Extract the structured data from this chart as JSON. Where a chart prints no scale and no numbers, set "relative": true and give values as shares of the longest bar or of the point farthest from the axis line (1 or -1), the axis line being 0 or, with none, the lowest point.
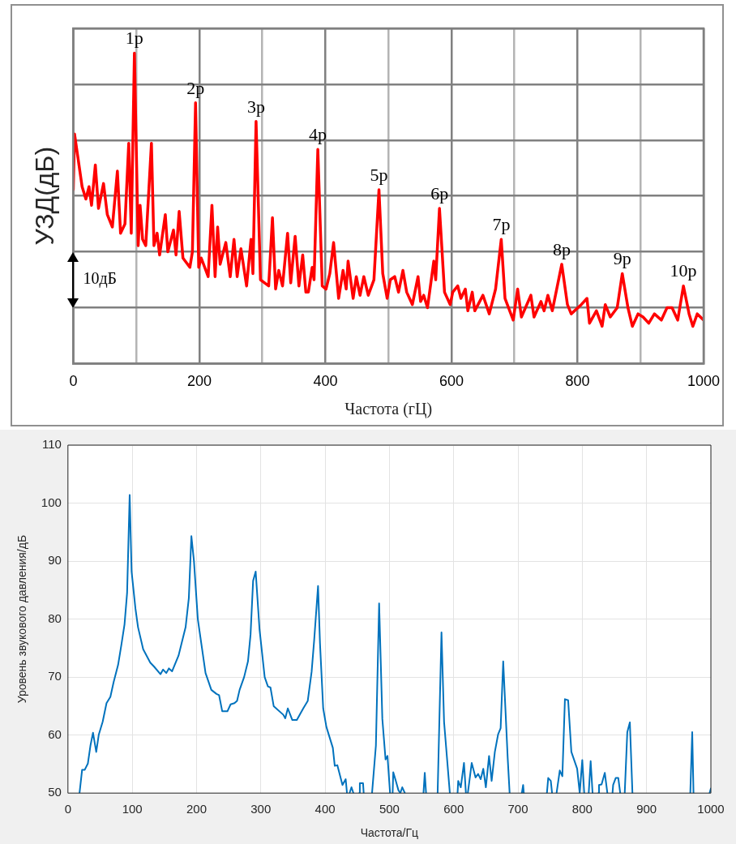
{
  "chart_data": [
    {
      "type": "line",
      "xlabel": "Частота (гЦ)",
      "ylabel": "УЗД(дБ)",
      "relative": true,
      "grid": true,
      "tick_labels": "x",
      "xlim": [
        0,
        1000
      ],
      "xticks": [
        0,
        {
          "value": 100,
          "label": null
        },
        200,
        {
          "value": 300,
          "label": null
        },
        400,
        {
          "value": 500,
          "label": null
        },
        600,
        {
          "value": 700,
          "label": null
        },
        800,
        {
          "value": 900,
          "label": null
        },
        1000
      ],
      "x": [
        0,
        2,
        14,
        20,
        25,
        29,
        35,
        40,
        48,
        54,
        62,
        70,
        75,
        82,
        88,
        92,
        97,
        103,
        106,
        110,
        115,
        124,
        128,
        133,
        137,
        146,
        150,
        159,
        163,
        168,
        174,
        185,
        189,
        194,
        199,
        203,
        214,
        220,
        225,
        229,
        233,
        242,
        249,
        255,
        260,
        266,
        275,
        282,
        285,
        290,
        297,
        310,
        316,
        321,
        326,
        332,
        340,
        345,
        352,
        358,
        364,
        369,
        373,
        379,
        382,
        388,
        395,
        401,
        407,
        413,
        421,
        428,
        433,
        436,
        444,
        449,
        455,
        461,
        468,
        477,
        485,
        491,
        498,
        503,
        510,
        516,
        523,
        529,
        538,
        547,
        551,
        556,
        562,
        572,
        575,
        581,
        589,
        598,
        602,
        610,
        615,
        622,
        626,
        633,
        637,
        650,
        660,
        670,
        679,
        685,
        698,
        705,
        711,
        726,
        731,
        742,
        747,
        753,
        760,
        775,
        784,
        790,
        806,
        815,
        819,
        830,
        839,
        844,
        852,
        863,
        871,
        880,
        887,
        896,
        904,
        913,
        922,
        933,
        942,
        950,
        959,
        968,
        977,
        983,
        990,
        1000
      ],
      "series": [
        {
          "color": "#ff0000",
          "values": [
            0.56,
            0.74,
            0.57,
            0.53,
            0.57,
            0.51,
            0.64,
            0.5,
            0.58,
            0.48,
            0.44,
            0.62,
            0.42,
            0.45,
            0.71,
            0.42,
            1,
            0.38,
            0.51,
            0.4,
            0.38,
            0.71,
            0.38,
            0.42,
            0.35,
            0.48,
            0.36,
            0.43,
            0.35,
            0.49,
            0.34,
            0.31,
            0.36,
            0.84,
            0.31,
            0.34,
            0.28,
            0.51,
            0.28,
            0.44,
            0.32,
            0.39,
            0.28,
            0.4,
            0.28,
            0.37,
            0.25,
            0.4,
            0.29,
            0.78,
            0.27,
            0.25,
            0.47,
            0.24,
            0.3,
            0.25,
            0.42,
            0.26,
            0.41,
            0.25,
            0.35,
            0.23,
            0.23,
            0.31,
            0.27,
            0.69,
            0.25,
            0.24,
            0.29,
            0.39,
            0.21,
            0.3,
            0.24,
            0.33,
            0.21,
            0.28,
            0.22,
            0.28,
            0.22,
            0.27,
            0.56,
            0.29,
            0.21,
            0.27,
            0.28,
            0.23,
            0.3,
            0.23,
            0.19,
            0.28,
            0.2,
            0.22,
            0.18,
            0.33,
            0.27,
            0.5,
            0.23,
            0.19,
            0.23,
            0.25,
            0.21,
            0.24,
            0.17,
            0.23,
            0.17,
            0.22,
            0.16,
            0.24,
            0.4,
            0.21,
            0.14,
            0.24,
            0.15,
            0.22,
            0.15,
            0.2,
            0.17,
            0.22,
            0.17,
            0.32,
            0.19,
            0.16,
            0.19,
            0.21,
            0.13,
            0.17,
            0.12,
            0.19,
            0.15,
            0.18,
            0.29,
            0.18,
            0.12,
            0.16,
            0.15,
            0.13,
            0.16,
            0.14,
            0.18,
            0.18,
            0.14,
            0.25,
            0.16,
            0.12,
            0.16,
            0.14
          ]
        }
      ],
      "annotations": [
        {
          "text": "1р",
          "x": 97,
          "y": 1
        },
        {
          "text": "2р",
          "x": 194,
          "y": 0.84
        },
        {
          "text": "3р",
          "x": 290,
          "y": 0.78
        },
        {
          "text": "4р",
          "x": 388,
          "y": 0.69
        },
        {
          "text": "5р",
          "x": 485,
          "y": 0.56
        },
        {
          "text": "6р",
          "x": 581,
          "y": 0.5
        },
        {
          "text": "7р",
          "x": 679,
          "y": 0.4
        },
        {
          "text": "8р",
          "x": 775,
          "y": 0.32
        },
        {
          "text": "9р",
          "x": 871,
          "y": 0.29
        },
        {
          "text": "10р",
          "x": 968,
          "y": 0.25
        },
        "10дБ"
      ]
    },
    {
      "type": "line",
      "xlabel": "Частота/Гц",
      "ylabel": "Уровень звукового давления/дБ",
      "grid": true,
      "xlim": [
        0,
        1000
      ],
      "xticks": [
        0,
        100,
        200,
        300,
        400,
        500,
        600,
        700,
        800,
        900,
        1000
      ],
      "ylim": [
        50,
        110
      ],
      "yticks": [
        50,
        60,
        70,
        80,
        90,
        100,
        110
      ],
      "x": [
        18,
        22,
        26,
        31,
        35,
        39,
        44,
        48,
        54,
        60,
        66,
        71,
        78,
        83,
        88,
        92,
        96,
        99,
        105,
        109,
        117,
        128,
        134,
        144,
        148,
        153,
        157,
        162,
        172,
        183,
        188,
        192,
        196,
        202,
        214,
        223,
        231,
        235,
        240,
        248,
        253,
        259,
        263,
        267,
        274,
        280,
        284,
        288,
        292,
        298,
        306,
        311,
        315,
        320,
        335,
        338,
        342,
        349,
        356,
        366,
        373,
        379,
        383,
        389,
        392,
        397,
        402,
        412,
        415,
        419,
        427,
        432,
        434,
        436,
        438,
        441,
        444,
        448,
        453,
        454,
        459,
        460,
        466,
        473,
        479,
        484,
        489,
        494,
        497,
        501,
        503,
        505,
        506,
        510,
        514,
        517,
        520,
        524,
        538,
        553,
        555,
        557,
        566,
        575,
        581,
        585,
        594,
        600,
        606,
        607,
        611,
        616,
        619,
        620,
        622,
        628,
        634,
        638,
        642,
        646,
        650,
        655,
        659,
        664,
        669,
        673,
        677,
        684,
        687,
        696,
        706,
        708,
        709,
        727,
        745,
        747,
        751,
        753,
        756,
        760,
        765,
        769,
        773,
        778,
        783,
        792,
        796,
        800,
        803,
        806,
        810,
        813,
        816,
        820,
        825,
        826,
        830,
        835,
        839,
        843,
        847,
        848,
        852,
        856,
        859,
        862,
        866,
        870,
        874,
        878,
        920,
        968,
        971,
        973,
        985,
        998,
        1000
      ],
      "series": [
        {
          "color": "#0072bd",
          "values": [
            50,
            54.0,
            54.0,
            55.1,
            58.2,
            60.4,
            57.1,
            60.1,
            62.3,
            65.5,
            66.6,
            69.1,
            72.1,
            75.5,
            79.1,
            84.5,
            101.4,
            88.2,
            81.8,
            78.6,
            74.8,
            72.5,
            71.8,
            70.5,
            71.3,
            70.7,
            71.5,
            71.0,
            73.7,
            78.6,
            83.6,
            94.3,
            90.0,
            80.0,
            70.7,
            67.8,
            67.1,
            66.9,
            64.1,
            64.1,
            65.3,
            65.5,
            65.9,
            67.8,
            70.0,
            72.7,
            77.3,
            86.6,
            88.2,
            78.2,
            70.0,
            68.4,
            68.2,
            65.0,
            63.5,
            62.9,
            64.6,
            62.6,
            62.6,
            64.6,
            65.9,
            70.9,
            76.4,
            85.7,
            75.9,
            64.6,
            61.4,
            57.8,
            54.7,
            54.8,
            51.4,
            52.4,
            50,
            null,
            50,
            51.0,
            50,
            null,
            50,
            51.7,
            51.7,
            50,
            null,
            50,
            58.2,
            82.7,
            62.8,
            55.8,
            56.4,
            50,
            null,
            50,
            53.6,
            52.1,
            50.5,
            50,
            51.0,
            50,
            null,
            50,
            53.5,
            50,
            null,
            50,
            77.7,
            62.3,
            50,
            null,
            50,
            52.1,
            51.0,
            55.2,
            50,
            null,
            50,
            55.2,
            52.7,
            53.3,
            52.4,
            54.2,
            51.0,
            56.4,
            52.1,
            57.1,
            60.1,
            61.2,
            72.7,
            56.0,
            50,
            null,
            50,
            51.4,
            50,
            null,
            50,
            52.6,
            52.1,
            50,
            null,
            50,
            53.9,
            52.9,
            66.2,
            66.0,
            57.1,
            54.2,
            50,
            55.7,
            50,
            null,
            50,
            55.5,
            50,
            null,
            50,
            51.4,
            51.5,
            53.5,
            50,
            null,
            50,
            51.4,
            52.6,
            52.6,
            50,
            null,
            50,
            60.5,
            62.2,
            50,
            null,
            50,
            60.5,
            50,
            null,
            50,
            50.8
          ]
        }
      ]
    }
  ]
}
